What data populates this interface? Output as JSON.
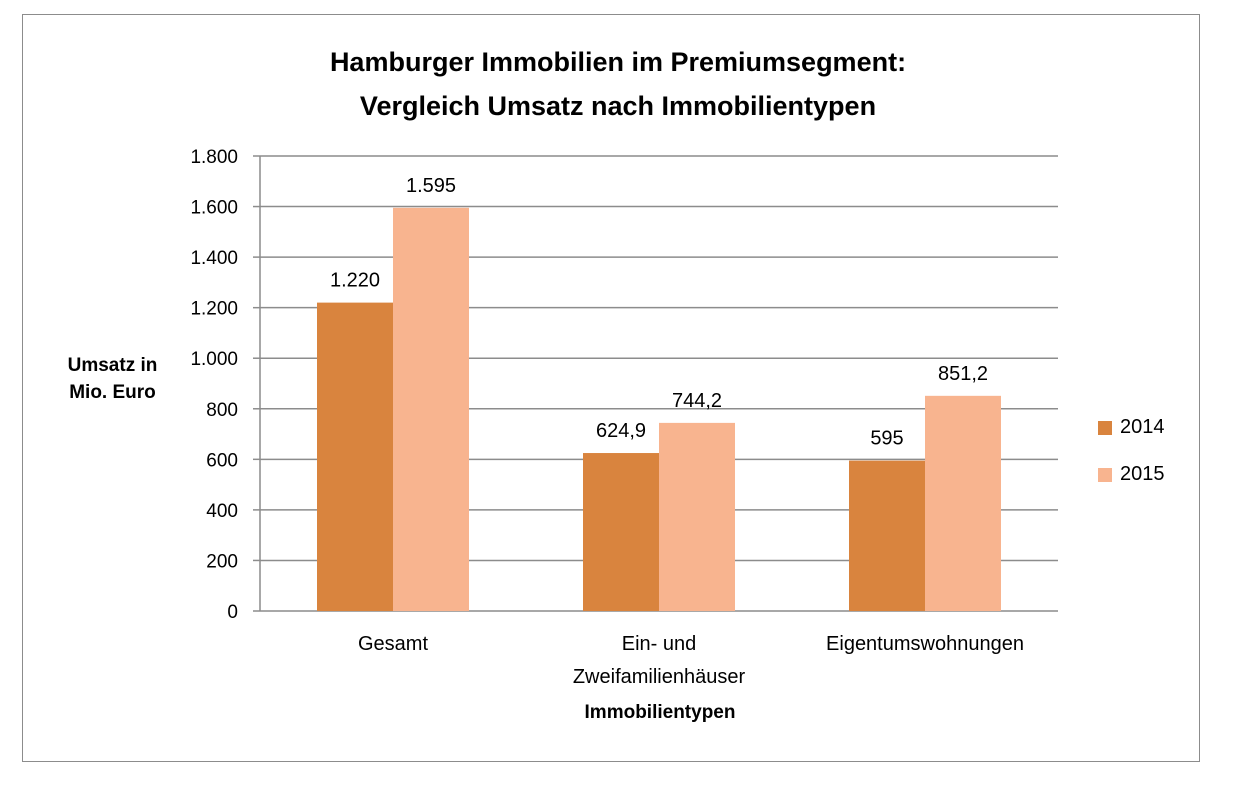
{
  "chart_data": {
    "type": "bar",
    "title_lines": [
      "Hamburger Immobilien im Premiumsegment:",
      "Vergleich Umsatz nach Immobilientypen"
    ],
    "xlabel": "Immobilientypen",
    "ylabel_lines": [
      "Umsatz in",
      "Mio. Euro"
    ],
    "categories": [
      {
        "lines": [
          "Gesamt"
        ]
      },
      {
        "lines": [
          "Ein- und",
          "Zweifamilienhäuser"
        ]
      },
      {
        "lines": [
          "Eigentumswohnungen"
        ]
      }
    ],
    "series": [
      {
        "name": "2014",
        "color": "#d9843e",
        "values": [
          1220,
          624.9,
          595
        ],
        "labels": [
          "1.220",
          "624,9",
          "595"
        ]
      },
      {
        "name": "2015",
        "color": "#f8b48f",
        "values": [
          1595,
          744.2,
          851.2
        ],
        "labels": [
          "1.595",
          "744,2",
          "851,2"
        ]
      }
    ],
    "ylim": [
      0,
      1800
    ],
    "yticks": [
      {
        "value": 0,
        "label": "0"
      },
      {
        "value": 200,
        "label": "200"
      },
      {
        "value": 400,
        "label": "400"
      },
      {
        "value": 600,
        "label": "600"
      },
      {
        "value": 800,
        "label": "800"
      },
      {
        "value": 1000,
        "label": "1.000"
      },
      {
        "value": 1200,
        "label": "1.200"
      },
      {
        "value": 1400,
        "label": "1.400"
      },
      {
        "value": 1600,
        "label": "1.600"
      },
      {
        "value": 1800,
        "label": "1.800"
      }
    ],
    "grid": true,
    "legend_position": "right"
  }
}
